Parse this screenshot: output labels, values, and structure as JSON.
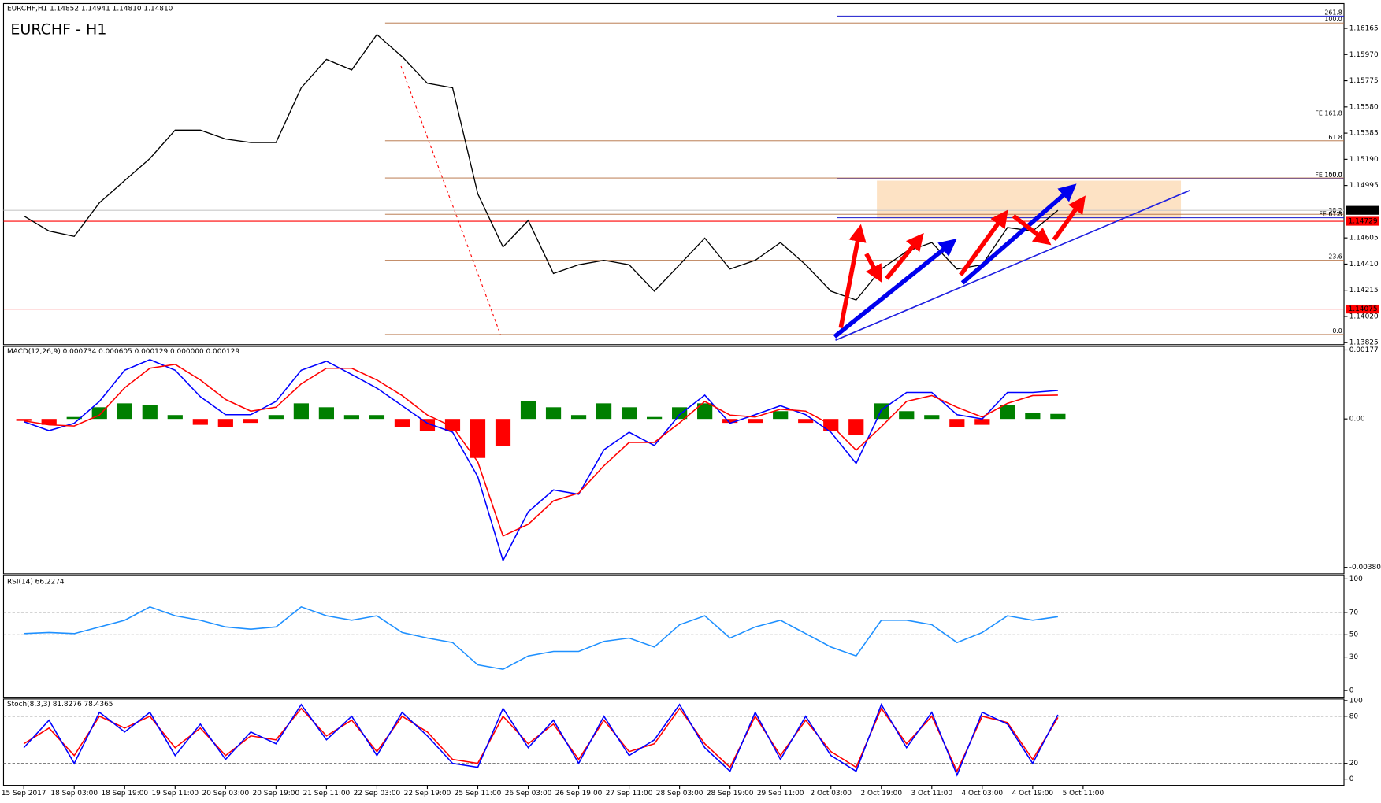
{
  "chart_data": [
    {
      "type": "line",
      "title": "EURCHF,H1  1.14852 1.14941 1.14810 1.14810",
      "annotation": "EURCHF - H1",
      "categories": [
        "15 Sep 2017",
        null,
        "18 Sep 03:00",
        null,
        "18 Sep 19:00",
        null,
        "19 Sep 11:00",
        null,
        "20 Sep 03:00",
        null,
        "20 Sep 19:00",
        null,
        "21 Sep 11:00",
        null,
        "22 Sep 03:00",
        null,
        "22 Sep 19:00",
        null,
        "25 Sep 11:00",
        null,
        "26 Sep 03:00",
        null,
        "26 Sep 19:00",
        null,
        "27 Sep 11:00",
        null,
        "28 Sep 03:00",
        null,
        "28 Sep 19:00",
        null,
        "29 Sep 11:00",
        null,
        "2 Oct 03:00",
        null,
        "2 Oct 19:00",
        null,
        "3 Oct 11:00",
        null,
        "4 Oct 03:00",
        null,
        "4 Oct 19:00",
        null,
        "5 Oct 11:00"
      ],
      "series": [
        {
          "color": "#000000",
          "values": [
            1.14768,
            1.14656,
            1.14616,
            1.14867,
            1.15032,
            1.15196,
            1.15407,
            1.15407,
            1.15341,
            1.15315,
            1.15315,
            1.15723,
            1.15934,
            1.15855,
            1.16119,
            1.15954,
            1.15756,
            1.15723,
            1.14933,
            1.14537,
            1.14735,
            1.1434,
            1.14405,
            1.14438,
            1.14405,
            1.14208,
            1.14405,
            1.14603,
            1.14373,
            1.14438,
            1.1457,
            1.14405,
            1.14208,
            1.14142,
            1.14373,
            1.14504,
            1.1457,
            1.14373,
            1.14405,
            1.14682,
            1.14656,
            1.1481,
            null
          ]
        }
      ],
      "ylim": [
        1.1381,
        1.1635
      ],
      "yticks": [
        1.16165,
        {
          "value": 1.1597,
          "label": "1.15970"
        },
        1.15775,
        {
          "value": 1.1558,
          "label": "1.15580"
        },
        1.15385,
        {
          "value": 1.1519,
          "label": "1.15190"
        },
        1.14995,
        1.14605,
        {
          "value": 1.1441,
          "label": "1.14410"
        },
        1.14215,
        {
          "value": 1.1402,
          "label": "1.14020"
        },
        1.13825
      ],
      "price_labels": [
        {
          "value": 1.1481,
          "label": "1.14810",
          "color": "#000000",
          "line_color": "#c8c8c8"
        },
        {
          "value": 1.14729,
          "label": "1.14729",
          "color": "#ff0000",
          "line_color": "#ff0000"
        },
        {
          "value": 1.14075,
          "label": "1.14075",
          "color": "#ff0000",
          "line_color": "#ff0000"
        }
      ],
      "fib_color": "#b06a3a",
      "fib_levels": [
        {
          "label": "100.0",
          "value": 1.16205
        },
        {
          "label": "61.8",
          "value": 1.15328
        },
        {
          "label": "50.0",
          "value": 1.15051
        },
        {
          "label": "38.2",
          "value": 1.14781
        },
        {
          "label": "23.6",
          "value": 1.14438
        },
        {
          "label": "0.0",
          "value": 1.13885
        }
      ],
      "fe_color": "#1a1acc",
      "fe_levels": [
        {
          "label": "261.8",
          "value": 1.16257
        },
        {
          "label": "FE 161.8",
          "value": 1.15506
        },
        {
          "label": "FE 100.0",
          "value": 1.15045
        },
        {
          "label": "FE 61.8",
          "value": 1.14755
        }
      ]
    },
    {
      "type": "line",
      "title": "MACD(12,26,9) 0.000734 0.000605 0.000129 0.000000 0.000129",
      "series": [
        {
          "type": "bar",
          "color": "#008000",
          "negative_color": "#ff0000",
          "values": [
            -5e-05,
            -0.00015,
            5e-05,
            0.0003,
            0.0004,
            0.00035,
            0.0001,
            -0.00015,
            -0.0002,
            -0.0001,
            0.0001,
            0.0004,
            0.0003,
            0.0001,
            0.0001,
            -0.0002,
            -0.0003,
            -0.0003,
            -0.001,
            -0.0007,
            0.00045,
            0.0003,
            0.0001,
            0.0004,
            0.0003,
            5e-05,
            0.0003,
            0.0004,
            -0.0001,
            -0.0001,
            0.0002,
            -0.0001,
            -0.0003,
            -0.0004,
            0.0004,
            0.0002,
            0.0001,
            -0.0002,
            -0.00015,
            0.00035,
            0.00015,
            0.00013,
            null
          ]
        },
        {
          "color": "#0000ff",
          "values": [
            -7e-05,
            -0.0003,
            -0.00011,
            0.00045,
            0.00125,
            0.00152,
            0.00125,
            0.00057,
            0.00011,
            0.00011,
            0.00045,
            0.00125,
            0.00148,
            0.00114,
            0.00079,
            0.00034,
            -0.00011,
            -0.00034,
            -0.00148,
            -0.00363,
            -0.00238,
            -0.00182,
            -0.00193,
            -0.00079,
            -0.00034,
            -0.00068,
            0.00011,
            0.00061,
            -0.00011,
            0.00011,
            0.00034,
            0.00011,
            -0.00034,
            -0.00114,
            0.00023,
            0.00068,
            0.00068,
            0.00011,
            0,
            0.00068,
            0.00068,
            0.00073,
            null
          ]
        },
        {
          "color": "#ff0000",
          "values": [
            -5e-05,
            -0.00015,
            -0.00018,
            0.0001,
            0.0008,
            0.0013,
            0.0014,
            0.001,
            0.0005,
            0.0002,
            0.0003,
            0.0009,
            0.0013,
            0.0013,
            0.001,
            0.0006,
            0.0001,
            -0.0002,
            -0.0011,
            -0.003,
            -0.0027,
            -0.0021,
            -0.0019,
            -0.0012,
            -0.0006,
            -0.0006,
            -0.0001,
            0.00045,
            0.0001,
            5e-05,
            0.00025,
            0.0002,
            -0.00015,
            -0.0008,
            -0.0002,
            0.00045,
            0.0006,
            0.0003,
            5e-05,
            0.0004,
            0.0006,
            0.00061,
            null
          ]
        }
      ],
      "ylim": [
        -0.00397,
        0.00186
      ],
      "yticks": [
        0.00177,
        {
          "value": 0,
          "label": "0.00"
        },
        -0.003804
      ]
    },
    {
      "type": "line",
      "title": "RSI(14) 66.2274",
      "series": [
        {
          "color": "#1e90ff",
          "values": [
            51,
            52,
            51,
            57,
            63,
            75,
            67,
            63,
            57,
            55,
            57,
            75,
            67,
            63,
            67,
            52,
            47,
            43,
            23,
            19,
            31,
            35,
            35,
            44,
            47,
            39,
            59,
            67,
            47,
            57,
            63,
            51,
            39,
            31,
            63,
            63,
            59,
            43,
            52,
            67,
            63,
            66.2,
            null
          ]
        }
      ],
      "ylim": [
        -6,
        103
      ],
      "yticks": [
        0,
        30,
        50,
        70,
        100
      ],
      "levels": [
        30,
        50,
        70
      ]
    },
    {
      "type": "line",
      "title": "Stoch(8,3,3) 81.8276 78.4365",
      "series": [
        {
          "color": "#ff0000",
          "values": [
            45,
            65,
            30,
            80,
            65,
            80,
            40,
            65,
            30,
            55,
            50,
            90,
            55,
            75,
            35,
            80,
            60,
            25,
            20,
            80,
            45,
            70,
            25,
            75,
            35,
            45,
            90,
            45,
            15,
            80,
            30,
            75,
            35,
            15,
            90,
            45,
            80,
            10,
            80,
            72,
            25,
            78.4,
            null
          ]
        },
        {
          "color": "#0000ff",
          "values": [
            40,
            75,
            20,
            85,
            60,
            85,
            30,
            70,
            25,
            60,
            45,
            95,
            50,
            80,
            30,
            85,
            55,
            20,
            15,
            90,
            40,
            75,
            20,
            80,
            30,
            50,
            95,
            40,
            10,
            85,
            25,
            80,
            30,
            10,
            95,
            40,
            85,
            5,
            85,
            70,
            20,
            81.8,
            null
          ]
        }
      ],
      "ylim": [
        -8,
        102
      ],
      "yticks": [
        0,
        20,
        80,
        100
      ],
      "levels": [
        20,
        80
      ]
    }
  ]
}
